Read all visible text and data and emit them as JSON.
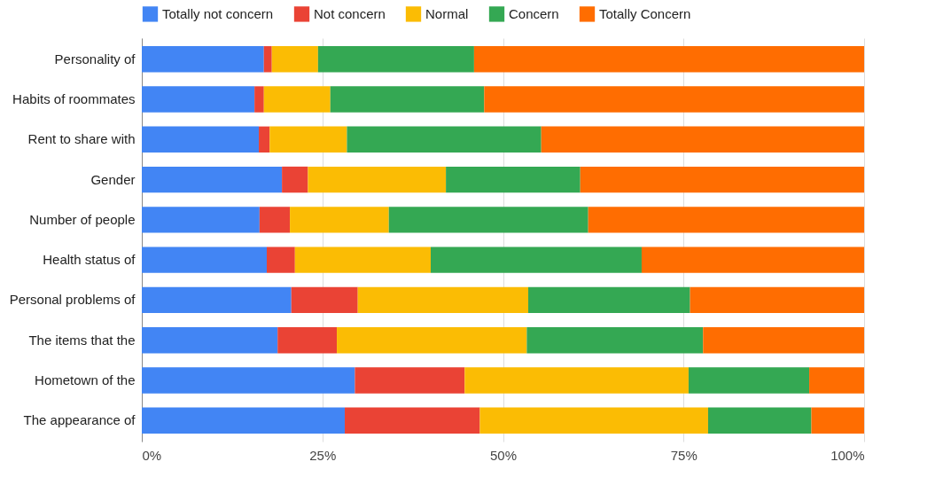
{
  "chart_data": {
    "type": "bar",
    "orientation": "horizontal",
    "stacked": true,
    "categories": [
      "Personality of",
      "Habits of roommates",
      "Rent to share with",
      "Gender",
      "Number of people",
      "Health status of",
      "Personal problems of",
      "The items that the",
      "Hometown of the",
      "The appearance of"
    ],
    "series": [
      {
        "name": "Totally not concern",
        "color": "#4285f4",
        "values": [
          16.9,
          15.6,
          16.2,
          19.4,
          16.3,
          17.3,
          20.7,
          18.8,
          29.5,
          28.1
        ]
      },
      {
        "name": "Not concern",
        "color": "#ea4335",
        "values": [
          1.1,
          1.3,
          1.5,
          3.6,
          4.2,
          3.9,
          9.2,
          8.2,
          15.2,
          18.7
        ]
      },
      {
        "name": "Normal",
        "color": "#fbbc04",
        "values": [
          6.4,
          9.2,
          10.7,
          19.1,
          13.7,
          18.8,
          23.6,
          26.3,
          31.0,
          31.6
        ]
      },
      {
        "name": "Concern",
        "color": "#34a853",
        "values": [
          21.6,
          21.3,
          26.9,
          18.6,
          27.6,
          29.2,
          22.4,
          24.4,
          16.7,
          14.3
        ]
      },
      {
        "name": "Totally Concern",
        "color": "#ff6d01",
        "values": [
          54.0,
          52.6,
          44.7,
          39.3,
          38.2,
          30.8,
          24.1,
          22.3,
          7.6,
          7.3
        ]
      }
    ],
    "xlim": [
      0,
      100
    ],
    "xticks": [
      {
        "value": 0,
        "label": "0%"
      },
      {
        "value": 25,
        "label": "25%"
      },
      {
        "value": 50,
        "label": "50%"
      },
      {
        "value": 75,
        "label": "75%"
      },
      {
        "value": 100,
        "label": "100%"
      }
    ],
    "grid": "x",
    "legend": "top"
  }
}
